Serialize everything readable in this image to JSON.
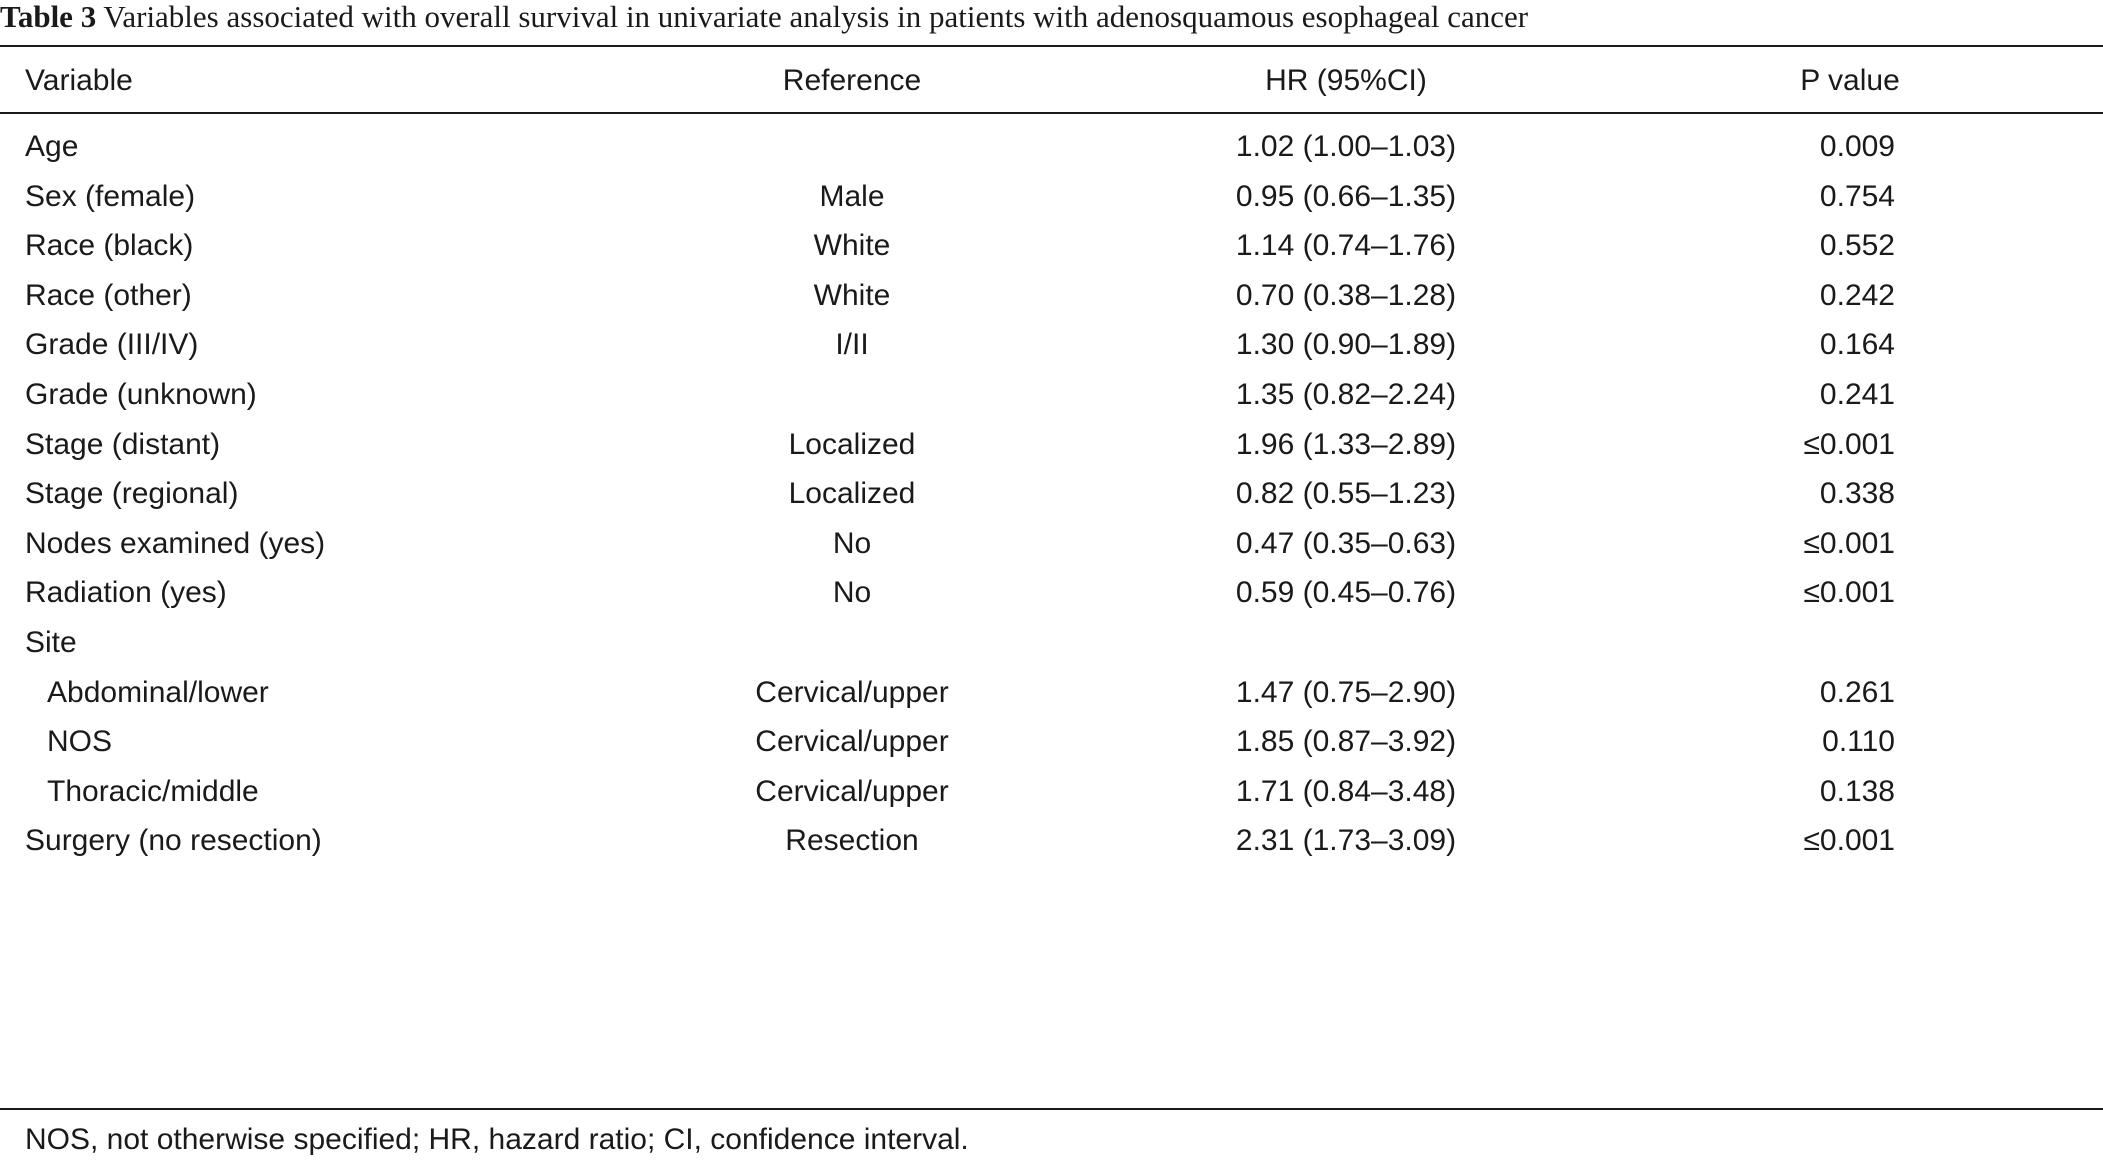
{
  "caption": {
    "label": "Table 3",
    "text": "Variables associated with overall survival in univariate analysis in patients with adenosquamous esophageal cancer"
  },
  "headers": {
    "variable": "Variable",
    "reference": "Reference",
    "hr": "HR (95%CI)",
    "p": "P value"
  },
  "rows": [
    {
      "variable": "Age",
      "reference": "",
      "hr": "1.02 (1.00–1.03)",
      "p": "0.009"
    },
    {
      "variable": "Sex (female)",
      "reference": "Male",
      "hr": "0.95 (0.66–1.35)",
      "p": "0.754"
    },
    {
      "variable": "Race (black)",
      "reference": "White",
      "hr": "1.14 (0.74–1.76)",
      "p": "0.552"
    },
    {
      "variable": "Race (other)",
      "reference": "White",
      "hr": "0.70 (0.38–1.28)",
      "p": "0.242"
    },
    {
      "variable": "Grade (III/IV)",
      "reference": "I/II",
      "hr": "1.30 (0.90–1.89)",
      "p": "0.164"
    },
    {
      "variable": "Grade (unknown)",
      "reference": "",
      "hr": "1.35 (0.82–2.24)",
      "p": "0.241"
    },
    {
      "variable": "Stage (distant)",
      "reference": "Localized",
      "hr": "1.96 (1.33–2.89)",
      "p": "≤0.001"
    },
    {
      "variable": "Stage (regional)",
      "reference": "Localized",
      "hr": "0.82 (0.55–1.23)",
      "p": "0.338"
    },
    {
      "variable": "Nodes examined (yes)",
      "reference": "No",
      "hr": "0.47 (0.35–0.63)",
      "p": "≤0.001"
    },
    {
      "variable": "Radiation (yes)",
      "reference": "No",
      "hr": "0.59 (0.45–0.76)",
      "p": "≤0.001"
    },
    {
      "variable": "Site",
      "reference": "",
      "hr": "",
      "p": ""
    },
    {
      "variable": "Abdominal/lower",
      "reference": "Cervical/upper",
      "hr": "1.47 (0.75–2.90)",
      "p": "0.261",
      "indent": true
    },
    {
      "variable": "NOS",
      "reference": "Cervical/upper",
      "hr": "1.85 (0.87–3.92)",
      "p": "0.110",
      "indent": true
    },
    {
      "variable": "Thoracic/middle",
      "reference": "Cervical/upper",
      "hr": "1.71 (0.84–3.48)",
      "p": "0.138",
      "indent": true
    },
    {
      "variable": "Surgery (no resection)",
      "reference": "Resection",
      "hr": "2.31 (1.73–3.09)",
      "p": "≤0.001"
    }
  ],
  "footnote": "NOS, not otherwise specified; HR, hazard ratio; CI, confidence interval."
}
